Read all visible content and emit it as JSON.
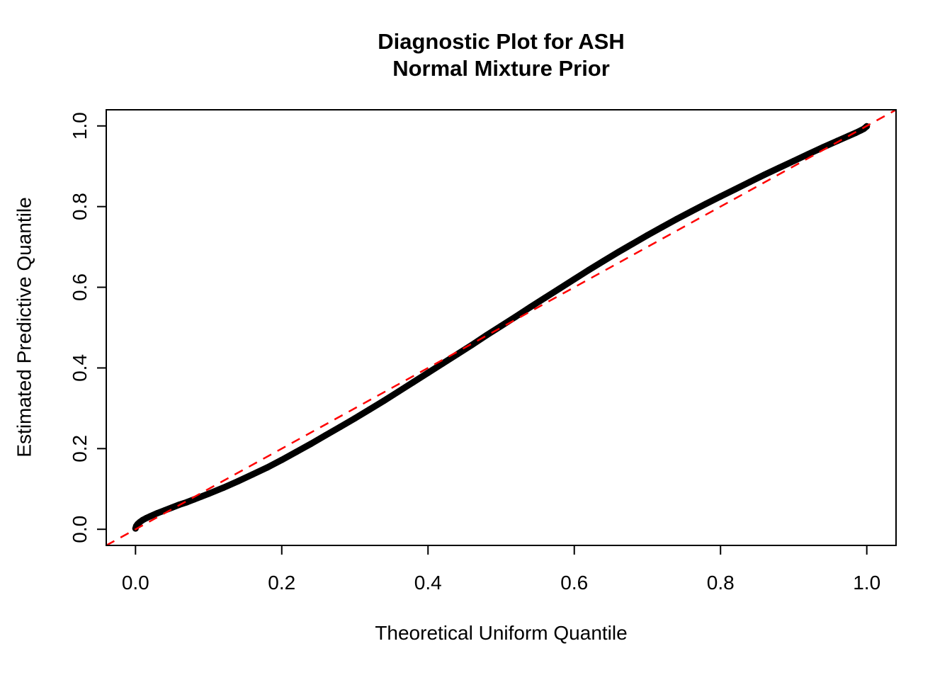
{
  "title": {
    "line1": "Diagnostic Plot for ASH",
    "line2": "Normal Mixture Prior"
  },
  "colors": {
    "curve": "#000000",
    "reference_line": "#ff0000",
    "background": "#ffffff",
    "axis": "#000000"
  },
  "chart_data": {
    "type": "scatter",
    "title": "Diagnostic Plot for ASH\nNormal Mixture Prior",
    "xlabel": "Theoretical Uniform Quantile",
    "ylabel": "Estimated Predictive Quantile",
    "xlim": [
      -0.04,
      1.04
    ],
    "ylim": [
      -0.04,
      1.04
    ],
    "x_ticks": [
      0.0,
      0.2,
      0.4,
      0.6,
      0.8,
      1.0
    ],
    "x_tick_labels": [
      "0.0",
      "0.2",
      "0.4",
      "0.6",
      "0.8",
      "1.0"
    ],
    "y_ticks": [
      0.0,
      0.2,
      0.4,
      0.6,
      0.8,
      1.0
    ],
    "y_tick_labels": [
      "0.0",
      "0.2",
      "0.4",
      "0.6",
      "0.8",
      "1.0"
    ],
    "grid": false,
    "legend": null,
    "series": [
      {
        "name": "estimated-predictive-quantiles",
        "kind": "points",
        "marker": "filled-circle",
        "color": "#000000",
        "points": [
          [
            0.0,
            0.002
          ],
          [
            0.001,
            0.008
          ],
          [
            0.003,
            0.013
          ],
          [
            0.006,
            0.018
          ],
          [
            0.01,
            0.023
          ],
          [
            0.015,
            0.028
          ],
          [
            0.02,
            0.032
          ],
          [
            0.03,
            0.04
          ],
          [
            0.04,
            0.047
          ],
          [
            0.05,
            0.054
          ],
          [
            0.06,
            0.061
          ],
          [
            0.07,
            0.067
          ],
          [
            0.08,
            0.074
          ],
          [
            0.09,
            0.081
          ],
          [
            0.1,
            0.088
          ],
          [
            0.12,
            0.103
          ],
          [
            0.14,
            0.119
          ],
          [
            0.16,
            0.136
          ],
          [
            0.18,
            0.153
          ],
          [
            0.2,
            0.172
          ],
          [
            0.22,
            0.192
          ],
          [
            0.24,
            0.212
          ],
          [
            0.26,
            0.233
          ],
          [
            0.28,
            0.254
          ],
          [
            0.3,
            0.275
          ],
          [
            0.32,
            0.297
          ],
          [
            0.34,
            0.319
          ],
          [
            0.36,
            0.342
          ],
          [
            0.38,
            0.365
          ],
          [
            0.4,
            0.388
          ],
          [
            0.42,
            0.411
          ],
          [
            0.44,
            0.434
          ],
          [
            0.46,
            0.457
          ],
          [
            0.48,
            0.481
          ],
          [
            0.5,
            0.504
          ],
          [
            0.52,
            0.527
          ],
          [
            0.54,
            0.551
          ],
          [
            0.56,
            0.574
          ],
          [
            0.58,
            0.597
          ],
          [
            0.6,
            0.62
          ],
          [
            0.62,
            0.643
          ],
          [
            0.64,
            0.665
          ],
          [
            0.66,
            0.687
          ],
          [
            0.68,
            0.708
          ],
          [
            0.7,
            0.729
          ],
          [
            0.72,
            0.749
          ],
          [
            0.74,
            0.769
          ],
          [
            0.76,
            0.788
          ],
          [
            0.78,
            0.807
          ],
          [
            0.8,
            0.825
          ],
          [
            0.82,
            0.843
          ],
          [
            0.84,
            0.861
          ],
          [
            0.86,
            0.879
          ],
          [
            0.88,
            0.896
          ],
          [
            0.9,
            0.913
          ],
          [
            0.92,
            0.93
          ],
          [
            0.94,
            0.947
          ],
          [
            0.96,
            0.963
          ],
          [
            0.975,
            0.975
          ],
          [
            0.985,
            0.983
          ],
          [
            0.992,
            0.989
          ],
          [
            0.996,
            0.993
          ],
          [
            1.0,
            0.999
          ]
        ]
      },
      {
        "name": "identity-reference-line",
        "kind": "line",
        "line_style": "dashed",
        "color": "#ff0000",
        "points": [
          [
            -0.04,
            -0.04
          ],
          [
            1.04,
            1.04
          ]
        ]
      }
    ]
  }
}
